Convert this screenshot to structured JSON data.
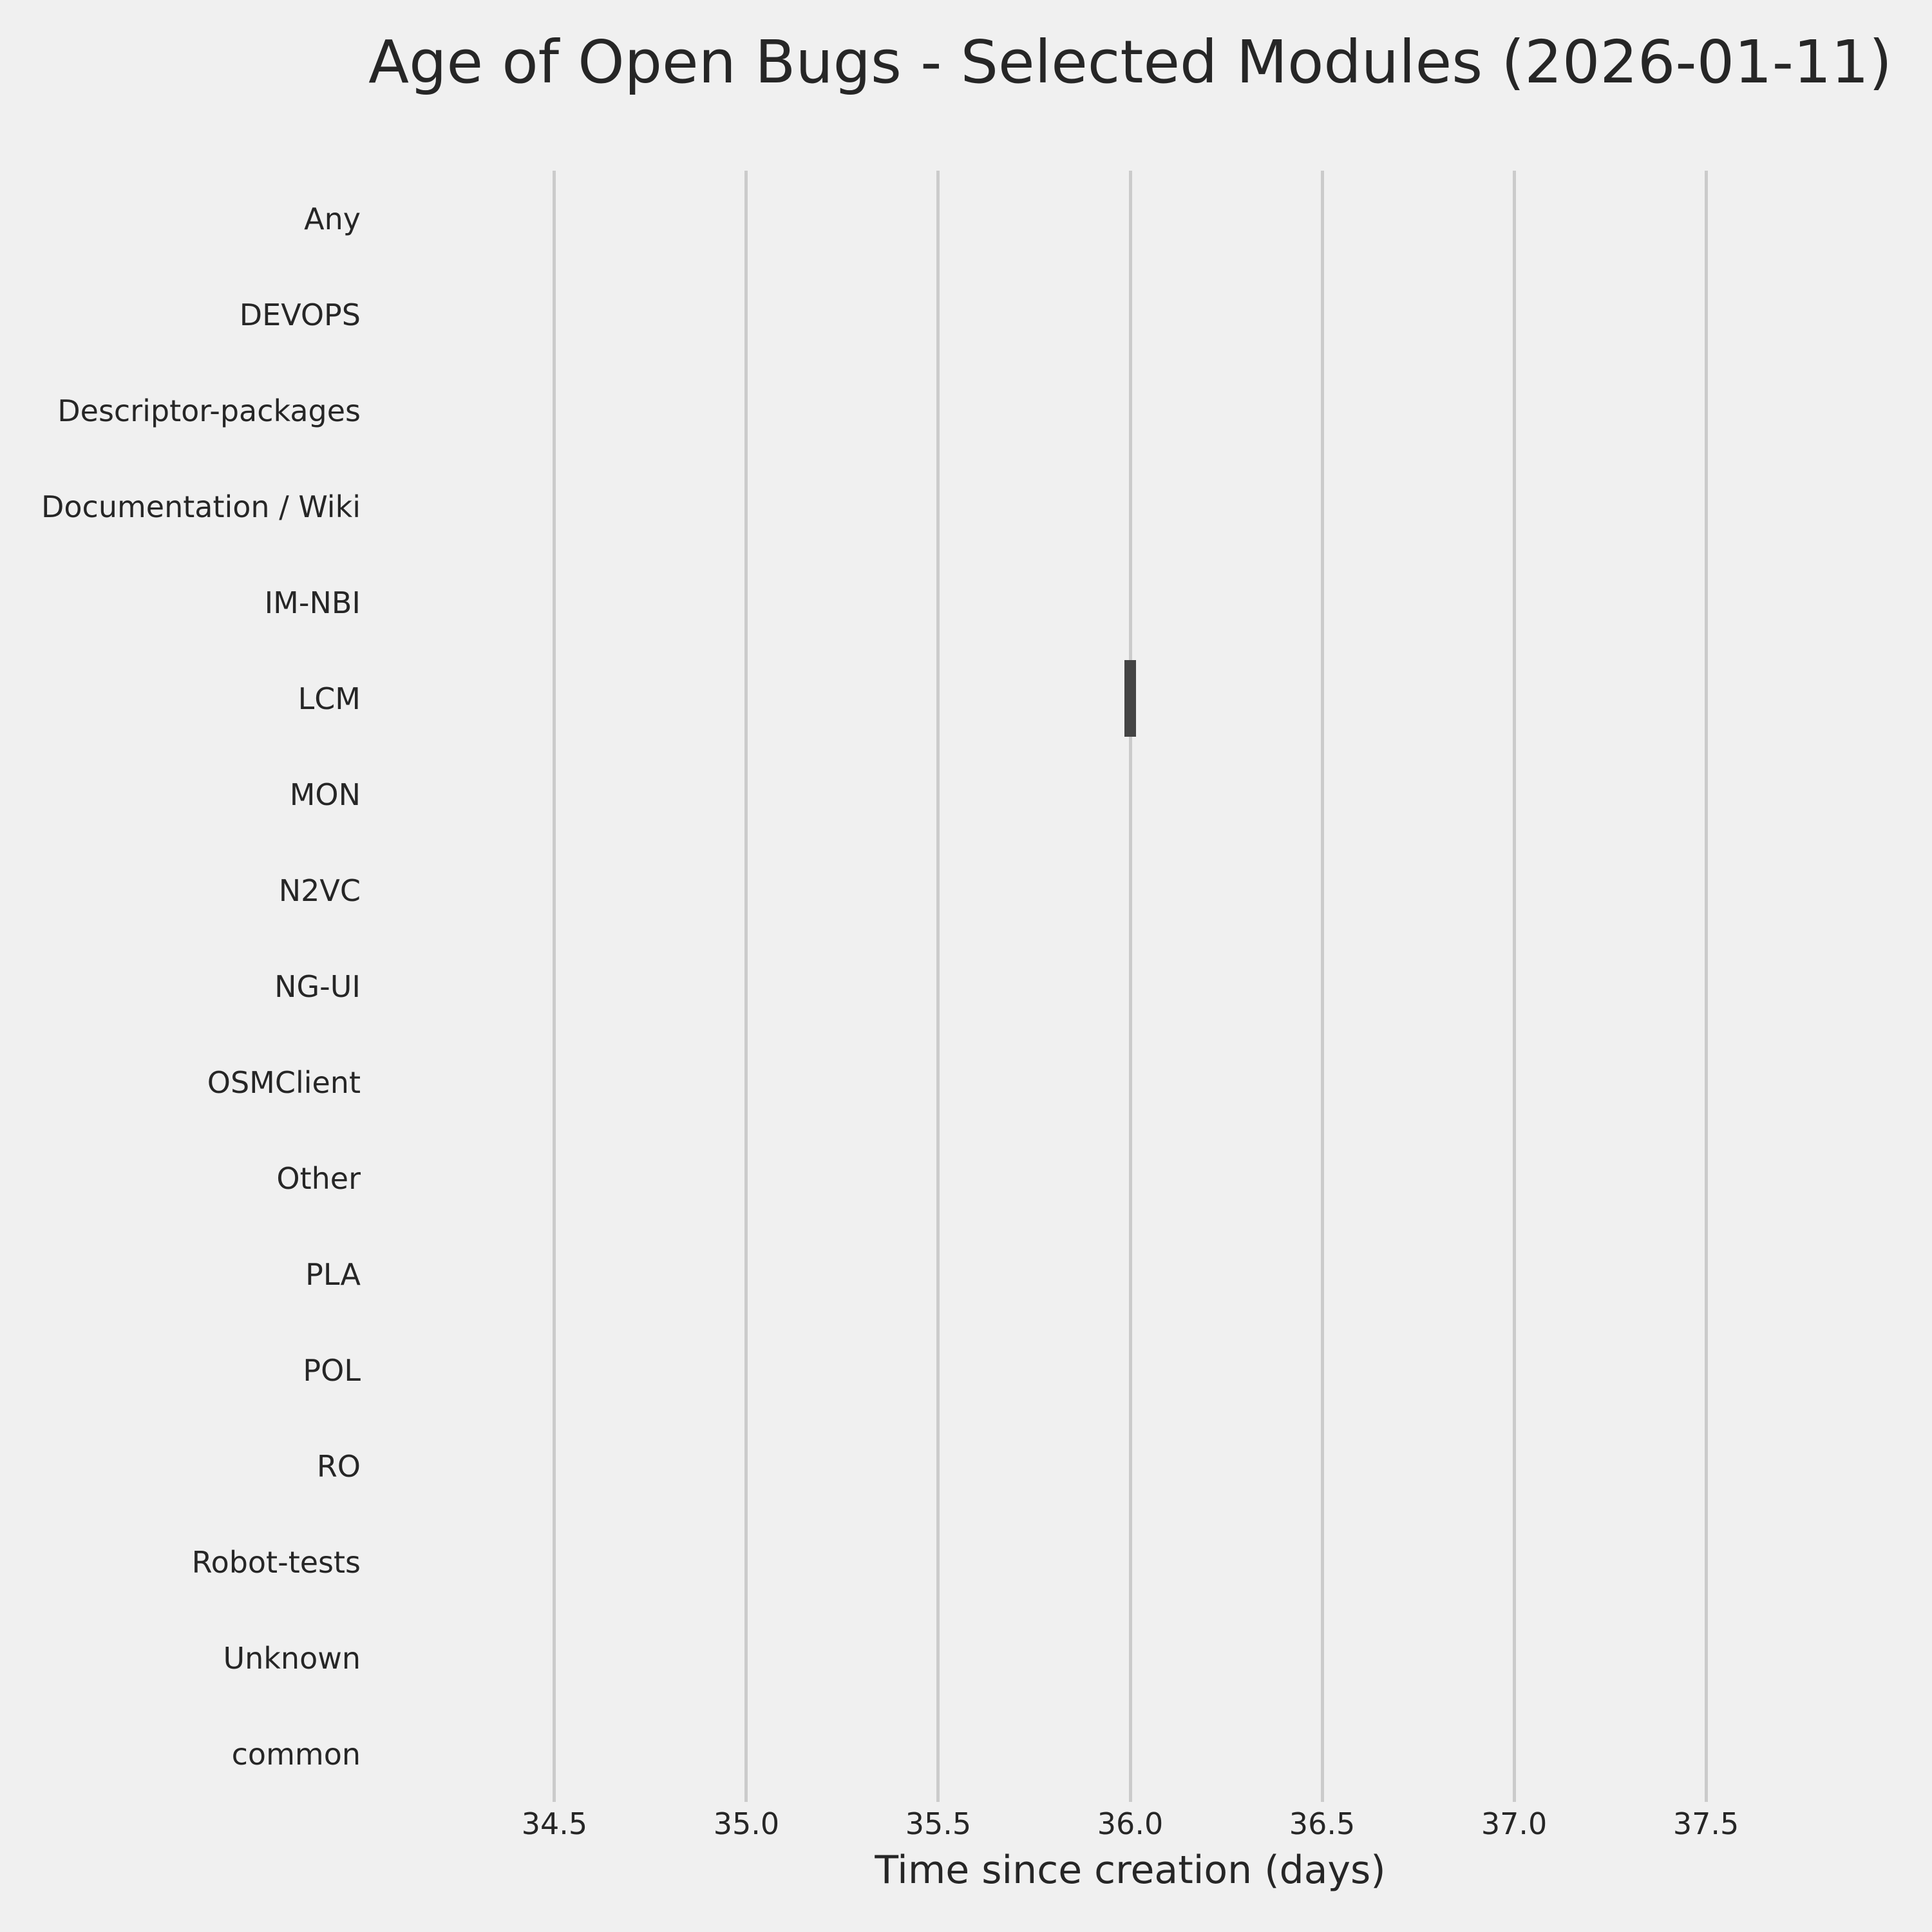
{
  "chart_data": {
    "type": "bar",
    "orientation": "horizontal",
    "title": "Age of Open Bugs - Selected Modules (2026-01-11)",
    "xlabel": "Time since creation (days)",
    "ylabel": "",
    "categories": [
      "Any",
      "DEVOPS",
      "Descriptor-packages",
      "Documentation / Wiki",
      "IM-NBI",
      "LCM",
      "MON",
      "N2VC",
      "NG-UI",
      "OSMClient",
      "Other",
      "PLA",
      "POL",
      "RO",
      "Robot-tests",
      "Unknown",
      "common"
    ],
    "series": [
      {
        "name": "open-bug-age-days",
        "values": [
          null,
          null,
          null,
          null,
          null,
          36.0,
          null,
          null,
          null,
          null,
          null,
          null,
          null,
          null,
          null,
          null,
          null
        ]
      }
    ],
    "bar_halfwidth_days": 0.015,
    "bar_thickness_fraction": 0.8,
    "xticks": [
      34.5,
      35.0,
      35.5,
      36.0,
      36.5,
      37.0,
      37.5
    ],
    "xtick_labels": [
      "34.5",
      "35.0",
      "35.5",
      "36.0",
      "36.5",
      "37.0",
      "37.5"
    ],
    "xlim": [
      34.23,
      37.77
    ],
    "grid": "vertical-only",
    "legend": "none",
    "colors": {
      "bar": "#444444",
      "grid": "#cbcbcb",
      "background": "#f0f0f0",
      "text": "#262626"
    }
  }
}
